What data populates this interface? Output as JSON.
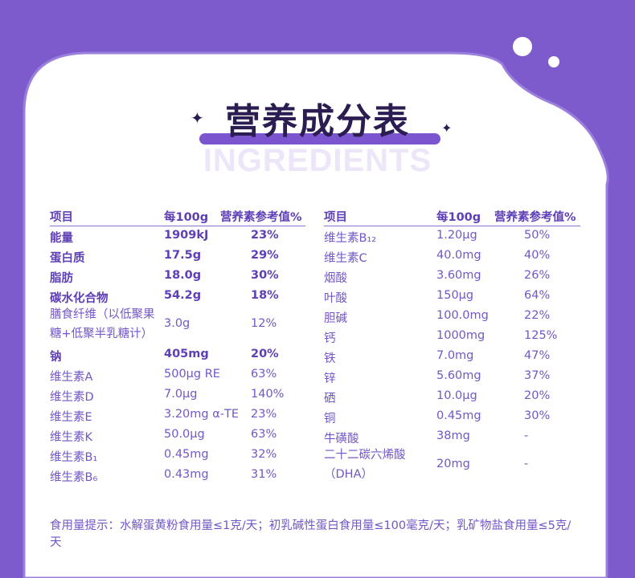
{
  "title": "营养成分表",
  "watermark": "INGREDIENTS",
  "colors": {
    "background": "#7d5bcc",
    "card": "#ffffff",
    "text": "#7357c6",
    "bold_text": "#5e3fb5",
    "title": "#2b1d52"
  },
  "headers": {
    "item": "项目",
    "per100g": "每100g",
    "nrv": "营养素参考值%"
  },
  "left": [
    {
      "name": "能量",
      "value": "1909kJ",
      "nrv": "23%",
      "bold": true
    },
    {
      "name": "蛋白质",
      "value": "17.5g",
      "nrv": "29%",
      "bold": true
    },
    {
      "name": "脂肪",
      "value": "18.0g",
      "nrv": "30%",
      "bold": true
    },
    {
      "name": "碳水化合物",
      "value": "54.2g",
      "nrv": "18%",
      "bold": true
    },
    {
      "name": "膳食纤维（以低聚果糖+低聚半乳糖计）",
      "value": "3.0g",
      "nrv": "12%",
      "two": true
    },
    {
      "name": "钠",
      "value": "405mg",
      "nrv": "20%",
      "bold": true
    },
    {
      "name": "维生素A",
      "value": "500μg RE",
      "nrv": "63%"
    },
    {
      "name": "维生素D",
      "value": "7.0μg",
      "nrv": "140%"
    },
    {
      "name": "维生素E",
      "value": "3.20mg α-TE",
      "nrv": "23%"
    },
    {
      "name": "维生素K",
      "value": "50.0μg",
      "nrv": "63%"
    },
    {
      "name": "维生素B₁",
      "value": "0.45mg",
      "nrv": "32%"
    },
    {
      "name": "维生素B₆",
      "value": "0.43mg",
      "nrv": "31%"
    }
  ],
  "right": [
    {
      "name": "维生素B₁₂",
      "value": "1.20μg",
      "nrv": "50%"
    },
    {
      "name": "维生素C",
      "value": "40.0mg",
      "nrv": "40%"
    },
    {
      "name": "烟酸",
      "value": "3.60mg",
      "nrv": "26%"
    },
    {
      "name": "叶酸",
      "value": "150μg",
      "nrv": "64%"
    },
    {
      "name": "胆碱",
      "value": "100.0mg",
      "nrv": "22%"
    },
    {
      "name": "钙",
      "value": "1000mg",
      "nrv": "125%"
    },
    {
      "name": "铁",
      "value": "7.0mg",
      "nrv": "47%"
    },
    {
      "name": "锌",
      "value": "5.60mg",
      "nrv": "37%"
    },
    {
      "name": "硒",
      "value": "10.0μg",
      "nrv": "20%"
    },
    {
      "name": "铜",
      "value": "0.45mg",
      "nrv": "30%"
    },
    {
      "name": "牛磺酸",
      "value": "38mg",
      "nrv": "-"
    },
    {
      "name": "二十二碳六烯酸（DHA）",
      "value": "20mg",
      "nrv": "-",
      "two": true
    }
  ],
  "footer": "食用量提示：水解蛋黄粉食用量≤1克/天；初乳碱性蛋白食用量≤100毫克/天；乳矿物盐食用量≤5克/天"
}
